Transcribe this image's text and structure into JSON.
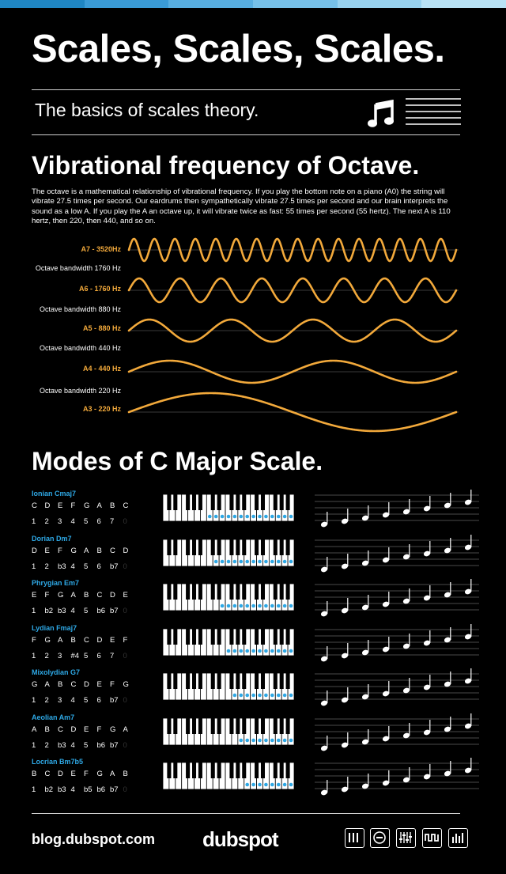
{
  "header": {
    "top_bar_colors": [
      "#1f86c3",
      "#3a9bd6",
      "#58aee0",
      "#76c0e8",
      "#98d2ef",
      "#b9e2f5"
    ],
    "title": "Scales, Scales, Scales.",
    "subtitle": "The basics of scales theory.",
    "icons": [
      "music-note-icon",
      "staff-lines-icon"
    ]
  },
  "octave_section": {
    "title": "Vibrational frequency of Octave.",
    "intro": "The octave is a mathematical relationship of vibrational frequency. If you play the bottom note on a piano (A0) the string will vibrate 27.5 times per second. Our eardrums then sympathetically vibrate 27.5 times per second and our brain interprets the sound as a low A. If you play the A an octave up, it will vibrate twice as fast: 55 times per second (55 hertz). The next A is 110 hertz, then 220, then 440, and so on.",
    "wave_color": "#f2a93b",
    "waves": [
      {
        "label": "A7 - 3520Hz",
        "cycles": 16
      },
      {
        "label": "A6 - 1760 Hz",
        "cycles": 8
      },
      {
        "label": "A5 - 880 Hz",
        "cycles": 4
      },
      {
        "label": "A4 - 440 Hz",
        "cycles": 2
      },
      {
        "label": "A3 - 220 Hz",
        "cycles": 1
      }
    ],
    "bandwidths": [
      "Octave bandwidth 1760 Hz",
      "Octave bandwidth 880 Hz",
      "Octave bandwidth 440 Hz",
      "Octave bandwidth 220 Hz"
    ]
  },
  "modes_section": {
    "title": "Modes of C Major Scale.",
    "accent": "#2ea8e5",
    "modes": [
      {
        "name": "Ionian Cmaj7",
        "notes": [
          "C",
          "D",
          "E",
          "F",
          "G",
          "A",
          "B",
          "C"
        ],
        "degrees": [
          "1",
          "2",
          "3",
          "4",
          "5",
          "6",
          "7",
          "0"
        ],
        "start": 0
      },
      {
        "name": "Dorian Dm7",
        "notes": [
          "D",
          "E",
          "F",
          "G",
          "A",
          "B",
          "C",
          "D"
        ],
        "degrees": [
          "1",
          "2",
          "b3",
          "4",
          "5",
          "6",
          "b7",
          "0"
        ],
        "start": 1
      },
      {
        "name": "Phrygian Em7",
        "notes": [
          "E",
          "F",
          "G",
          "A",
          "B",
          "C",
          "D",
          "E"
        ],
        "degrees": [
          "1",
          "b2",
          "b3",
          "4",
          "5",
          "b6",
          "b7",
          "0"
        ],
        "start": 2
      },
      {
        "name": "Lydian Fmaj7",
        "notes": [
          "F",
          "G",
          "A",
          "B",
          "C",
          "D",
          "E",
          "F"
        ],
        "degrees": [
          "1",
          "2",
          "3",
          "#4",
          "5",
          "6",
          "7",
          "0"
        ],
        "start": 3
      },
      {
        "name": "Mixolydian G7",
        "notes": [
          "G",
          "A",
          "B",
          "C",
          "D",
          "E",
          "F",
          "G"
        ],
        "degrees": [
          "1",
          "2",
          "3",
          "4",
          "5",
          "6",
          "b7",
          "0"
        ],
        "start": 4
      },
      {
        "name": "Aeolian Am7",
        "notes": [
          "A",
          "B",
          "C",
          "D",
          "E",
          "F",
          "G",
          "A"
        ],
        "degrees": [
          "1",
          "2",
          "b3",
          "4",
          "5",
          "b6",
          "b7",
          "0"
        ],
        "start": 5
      },
      {
        "name": "Locrian Bm7b5",
        "notes": [
          "B",
          "C",
          "D",
          "E",
          "F",
          "G",
          "A",
          "B"
        ],
        "degrees": [
          "1",
          "b2",
          "b3",
          "4",
          "b5",
          "b6",
          "b7",
          "0"
        ],
        "start": 6
      }
    ]
  },
  "footer": {
    "url": "blog.dubspot.com",
    "logo": "dubspot",
    "icons": [
      "keyboard-icon",
      "minus-circle-icon",
      "mixer-sliders-icon",
      "waveform-icon",
      "equalizer-icon"
    ]
  }
}
